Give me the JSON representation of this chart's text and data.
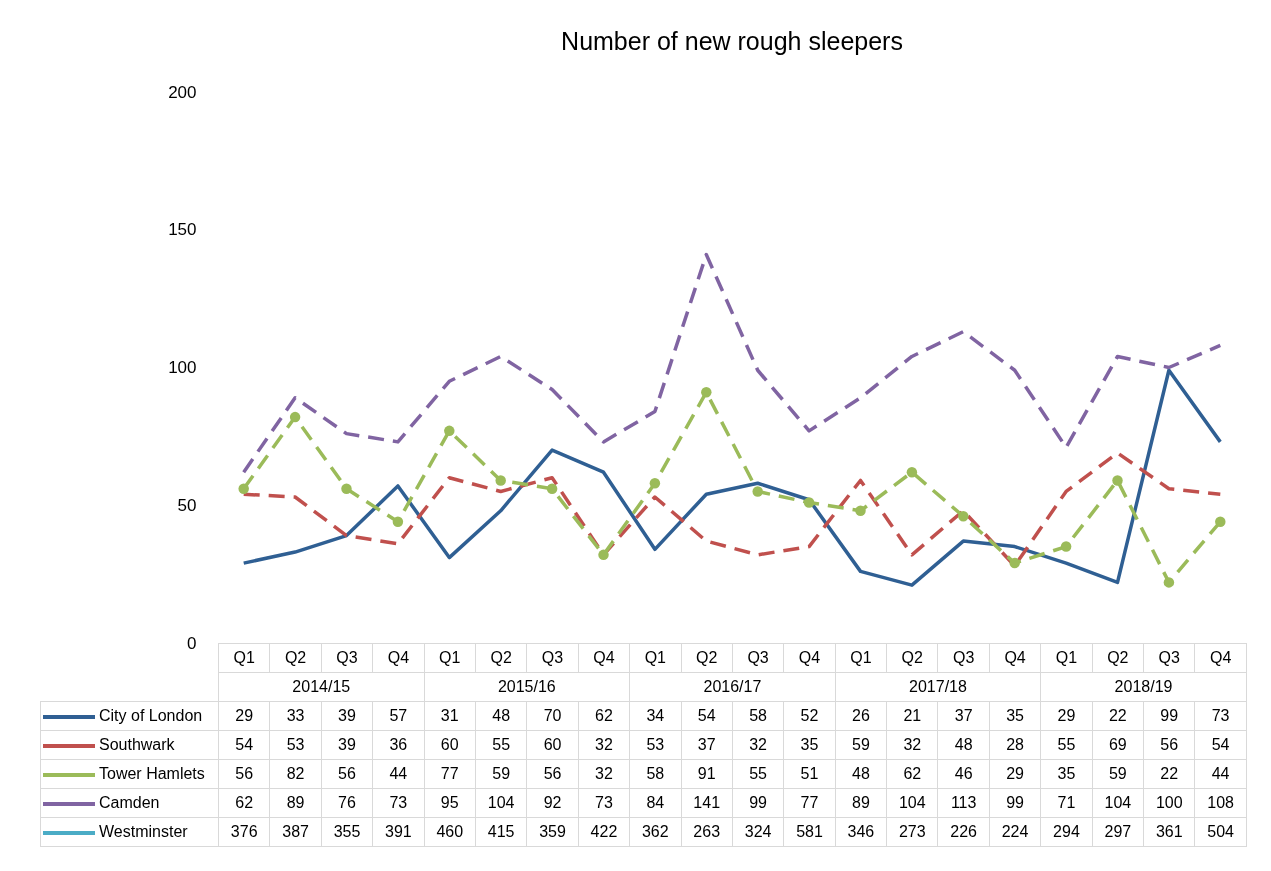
{
  "chart_data": {
    "type": "line",
    "title": "Number of new rough sleepers",
    "categories": [
      "Q1",
      "Q2",
      "Q3",
      "Q4",
      "Q1",
      "Q2",
      "Q3",
      "Q4",
      "Q1",
      "Q2",
      "Q3",
      "Q4",
      "Q1",
      "Q2",
      "Q3",
      "Q4",
      "Q1",
      "Q2",
      "Q3",
      "Q4"
    ],
    "annotations": [
      "2014/15",
      "2015/16",
      "2016/17",
      "2017/18",
      "2018/19"
    ],
    "ylim": [
      0,
      200
    ],
    "yticks": [
      0,
      50,
      100,
      150,
      200
    ],
    "grid": false,
    "legend": "bottom",
    "data_labels": true,
    "series": [
      {
        "name": "City of London",
        "color": "#2f5f93",
        "line_style": "solid",
        "marker": "none",
        "values": [
          29,
          33,
          39,
          57,
          31,
          48,
          70,
          62,
          34,
          54,
          58,
          52,
          26,
          21,
          37,
          35,
          29,
          22,
          99,
          73
        ]
      },
      {
        "name": "Southwark",
        "color": "#c0504d",
        "line_style": "dashed",
        "marker": "none",
        "values": [
          54,
          53,
          39,
          36,
          60,
          55,
          60,
          32,
          53,
          37,
          32,
          35,
          59,
          32,
          48,
          28,
          55,
          69,
          56,
          54
        ]
      },
      {
        "name": "Tower Hamlets",
        "color": "#9bbb59",
        "line_style": "dashed",
        "marker": "circle",
        "values": [
          56,
          82,
          56,
          44,
          77,
          59,
          56,
          32,
          58,
          91,
          55,
          51,
          48,
          62,
          46,
          29,
          35,
          59,
          22,
          44
        ]
      },
      {
        "name": "Camden",
        "color": "#8064a2",
        "line_style": "dashed",
        "marker": "none",
        "values": [
          62,
          89,
          76,
          73,
          95,
          104,
          92,
          73,
          84,
          141,
          99,
          77,
          89,
          104,
          113,
          99,
          71,
          104,
          100,
          108
        ]
      },
      {
        "name": "Westminster",
        "color": "#4bacc6",
        "line_style": "solid",
        "marker": "none",
        "values": [
          null,
          null,
          null,
          null,
          null,
          null,
          null,
          null,
          null,
          null,
          null,
          null,
          null,
          null,
          null,
          null,
          null,
          null,
          null,
          null
        ],
        "value_labels": [
          "376",
          "387",
          "355",
          "391",
          "460",
          "415",
          "359",
          "422",
          "362",
          "263",
          "324",
          "581",
          "346",
          "273",
          "226",
          "224",
          "294",
          "297",
          "361",
          "504"
        ]
      }
    ]
  }
}
